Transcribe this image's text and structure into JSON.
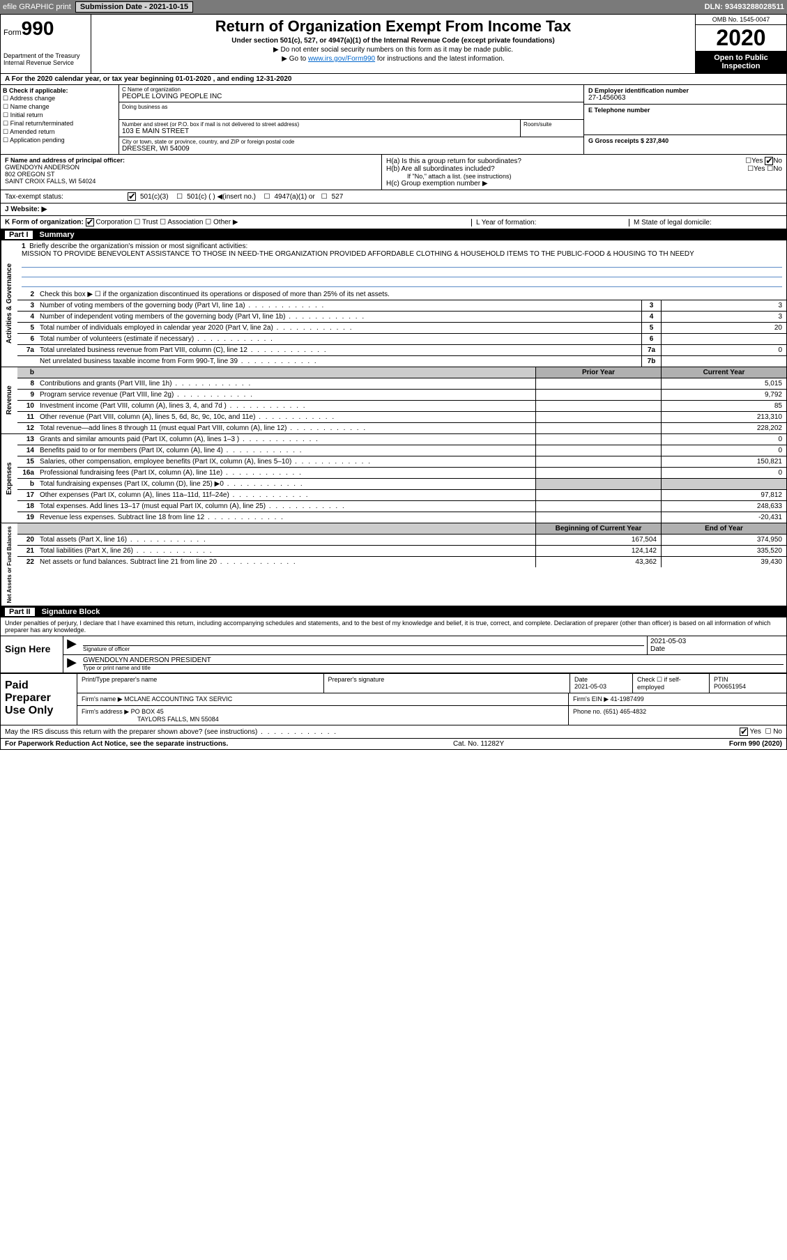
{
  "header": {
    "efile": "efile GRAPHIC print",
    "submission_label": "Submission Date - 2021-10-15",
    "dln": "DLN: 93493288028511"
  },
  "form": {
    "form_label": "Form",
    "form_number": "990",
    "dept1": "Department of the Treasury",
    "dept2": "Internal Revenue Service",
    "title": "Return of Organization Exempt From Income Tax",
    "subtitle": "Under section 501(c), 527, or 4947(a)(1) of the Internal Revenue Code (except private foundations)",
    "note1": "▶ Do not enter social security numbers on this form as it may be made public.",
    "note2_pre": "▶ Go to ",
    "note2_link": "www.irs.gov/Form990",
    "note2_post": " for instructions and the latest information.",
    "omb": "OMB No. 1545-0047",
    "year": "2020",
    "inspect1": "Open to Public",
    "inspect2": "Inspection"
  },
  "period": "A For the 2020 calendar year, or tax year beginning 01-01-2020   , and ending 12-31-2020",
  "checkB": {
    "hdr": "B Check if applicable:",
    "items": [
      "Address change",
      "Name change",
      "Initial return",
      "Final return/terminated",
      "Amended return",
      "Application pending"
    ]
  },
  "org": {
    "name_lbl": "C Name of organization",
    "name": "PEOPLE LOVING PEOPLE INC",
    "dba_lbl": "Doing business as",
    "addr_lbl": "Number and street (or P.O. box if mail is not delivered to street address)",
    "addr": "103 E MAIN STREET",
    "suite_lbl": "Room/suite",
    "city_lbl": "City or town, state or province, country, and ZIP or foreign postal code",
    "city": "DRESSER, WI  54009"
  },
  "right": {
    "ein_lbl": "D Employer identification number",
    "ein": "27-1456063",
    "phone_lbl": "E Telephone number",
    "gross_lbl": "G Gross receipts $ 237,840"
  },
  "officer": {
    "lbl": "F  Name and address of principal officer:",
    "name": "GWENDOYN ANDERSON",
    "addr1": "802 OREGON ST",
    "addr2": "SAINT CROIX FALLS, WI  54024"
  },
  "h": {
    "ha": "H(a)  Is this a group return for subordinates?",
    "hb": "H(b)  Are all subordinates included?",
    "hb_note": "If \"No,\" attach a list. (see instructions)",
    "hc": "H(c)  Group exemption number ▶",
    "yes": "Yes",
    "no": "No"
  },
  "status": {
    "lbl": "Tax-exempt status:",
    "opt1": "501(c)(3)",
    "opt2": "501(c) (   ) ◀(insert no.)",
    "opt3": "4947(a)(1) or",
    "opt4": "527"
  },
  "website": "J   Website: ▶",
  "korg": {
    "lbl": "K Form of organization:",
    "opts": [
      "Corporation",
      "Trust",
      "Association",
      "Other ▶"
    ],
    "l": "L Year of formation:",
    "m": "M State of legal domicile:"
  },
  "part1": {
    "pn": "Part I",
    "title": "Summary"
  },
  "mission": {
    "num": "1",
    "lbl": "Briefly describe the organization's mission or most significant activities:",
    "text": "MISSION TO PROVIDE BENEVOLENT ASSISTANCE TO THOSE IN NEED-THE ORGANIZATION PROVIDED AFFORDABLE CLOTHING & HOUSEHOLD ITEMS TO THE PUBLIC-FOOD & HOUSING TO TH NEEDY"
  },
  "gov": {
    "vtab": "Activities & Governance",
    "l2": "Check this box ▶ ☐  if the organization discontinued its operations or disposed of more than 25% of its net assets.",
    "rows": [
      {
        "n": "3",
        "t": "Number of voting members of the governing body (Part VI, line 1a)",
        "ln": "3",
        "v": "3"
      },
      {
        "n": "4",
        "t": "Number of independent voting members of the governing body (Part VI, line 1b)",
        "ln": "4",
        "v": "3"
      },
      {
        "n": "5",
        "t": "Total number of individuals employed in calendar year 2020 (Part V, line 2a)",
        "ln": "5",
        "v": "20"
      },
      {
        "n": "6",
        "t": "Total number of volunteers (estimate if necessary)",
        "ln": "6",
        "v": ""
      },
      {
        "n": "7a",
        "t": "Total unrelated business revenue from Part VIII, column (C), line 12",
        "ln": "7a",
        "v": "0"
      },
      {
        "n": "",
        "t": "Net unrelated business taxable income from Form 990-T, line 39",
        "ln": "7b",
        "v": ""
      }
    ]
  },
  "rev": {
    "vtab": "Revenue",
    "hdr_py": "Prior Year",
    "hdr_cy": "Current Year",
    "rows": [
      {
        "n": "8",
        "t": "Contributions and grants (Part VIII, line 1h)",
        "py": "",
        "cy": "5,015"
      },
      {
        "n": "9",
        "t": "Program service revenue (Part VIII, line 2g)",
        "py": "",
        "cy": "9,792"
      },
      {
        "n": "10",
        "t": "Investment income (Part VIII, column (A), lines 3, 4, and 7d )",
        "py": "",
        "cy": "85"
      },
      {
        "n": "11",
        "t": "Other revenue (Part VIII, column (A), lines 5, 6d, 8c, 9c, 10c, and 11e)",
        "py": "",
        "cy": "213,310"
      },
      {
        "n": "12",
        "t": "Total revenue—add lines 8 through 11 (must equal Part VIII, column (A), line 12)",
        "py": "",
        "cy": "228,202"
      }
    ]
  },
  "exp": {
    "vtab": "Expenses",
    "rows": [
      {
        "n": "13",
        "t": "Grants and similar amounts paid (Part IX, column (A), lines 1–3 )",
        "py": "",
        "cy": "0"
      },
      {
        "n": "14",
        "t": "Benefits paid to or for members (Part IX, column (A), line 4)",
        "py": "",
        "cy": "0"
      },
      {
        "n": "15",
        "t": "Salaries, other compensation, employee benefits (Part IX, column (A), lines 5–10)",
        "py": "",
        "cy": "150,821"
      },
      {
        "n": "16a",
        "t": "Professional fundraising fees (Part IX, column (A), line 11e)",
        "py": "",
        "cy": "0"
      },
      {
        "n": "b",
        "t": "Total fundraising expenses (Part IX, column (D), line 25) ▶0",
        "py": "gray",
        "cy": "gray"
      },
      {
        "n": "17",
        "t": "Other expenses (Part IX, column (A), lines 11a–11d, 11f–24e)",
        "py": "",
        "cy": "97,812"
      },
      {
        "n": "18",
        "t": "Total expenses. Add lines 13–17 (must equal Part IX, column (A), line 25)",
        "py": "",
        "cy": "248,633"
      },
      {
        "n": "19",
        "t": "Revenue less expenses. Subtract line 18 from line 12",
        "py": "",
        "cy": "-20,431"
      }
    ]
  },
  "na": {
    "vtab": "Net Assets or Fund Balances",
    "hdr_py": "Beginning of Current Year",
    "hdr_cy": "End of Year",
    "rows": [
      {
        "n": "20",
        "t": "Total assets (Part X, line 16)",
        "py": "167,504",
        "cy": "374,950"
      },
      {
        "n": "21",
        "t": "Total liabilities (Part X, line 26)",
        "py": "124,142",
        "cy": "335,520"
      },
      {
        "n": "22",
        "t": "Net assets or fund balances. Subtract line 21 from line 20",
        "py": "43,362",
        "cy": "39,430"
      }
    ]
  },
  "part2": {
    "pn": "Part II",
    "title": "Signature Block"
  },
  "sig": {
    "intro": "Under penalties of perjury, I declare that I have examined this return, including accompanying schedules and statements, and to the best of my knowledge and belief, it is true, correct, and complete. Declaration of preparer (other than officer) is based on all information of which preparer has any knowledge.",
    "here": "Sign Here",
    "sig_lbl": "Signature of officer",
    "date_lbl": "Date",
    "date": "2021-05-03",
    "name": "GWENDOLYN ANDERSON  PRESIDENT",
    "name_lbl": "Type or print name and title"
  },
  "prep": {
    "lbl": "Paid Preparer Use Only",
    "h1": "Print/Type preparer's name",
    "h2": "Preparer's signature",
    "h3": "Date",
    "date": "2021-05-03",
    "h4": "Check ☐ if self-employed",
    "h5": "PTIN",
    "ptin": "P00651954",
    "firm_lbl": "Firm's name    ▶",
    "firm": "MCLANE ACCOUNTING TAX SERVIC",
    "ein_lbl": "Firm's EIN ▶",
    "ein": "41-1987499",
    "addr_lbl": "Firm's address ▶",
    "addr1": "PO BOX 45",
    "addr2": "TAYLORS FALLS, MN  55084",
    "phone_lbl": "Phone no.",
    "phone": "(651) 465-4832"
  },
  "discuss": {
    "q": "May the IRS discuss this return with the preparer shown above? (see instructions)",
    "yes": "Yes",
    "no": "No"
  },
  "footer": {
    "l": "For Paperwork Reduction Act Notice, see the separate instructions.",
    "c": "Cat. No. 11282Y",
    "r": "Form 990 (2020)"
  }
}
